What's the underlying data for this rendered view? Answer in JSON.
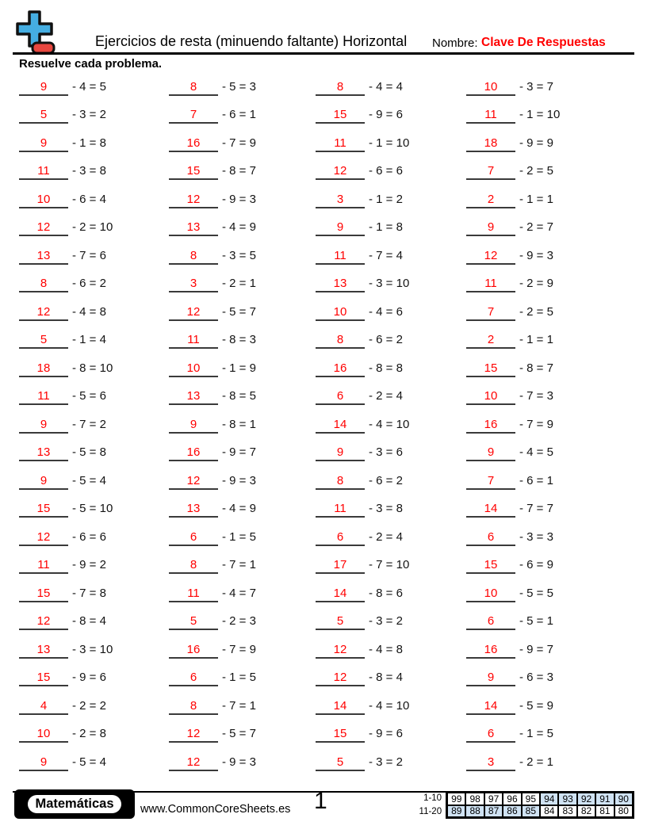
{
  "header": {
    "title": "Ejercicios de resta (minuendo faltante) Horizontal",
    "name_label": "Nombre:",
    "name_value": "Clave De Respuestas",
    "logo_plus_color": "#45aee2",
    "logo_minus_color": "#e8473f"
  },
  "instructions": "Resuelve cada problema.",
  "answer_color": "#ff0000",
  "problems": {
    "format": "[missing_minuend, subtrahend, difference]",
    "columns": [
      [
        [
          9,
          4,
          5
        ],
        [
          5,
          3,
          2
        ],
        [
          9,
          1,
          8
        ],
        [
          11,
          3,
          8
        ],
        [
          10,
          6,
          4
        ],
        [
          12,
          2,
          10
        ],
        [
          13,
          7,
          6
        ],
        [
          8,
          6,
          2
        ],
        [
          12,
          4,
          8
        ],
        [
          5,
          1,
          4
        ],
        [
          18,
          8,
          10
        ],
        [
          11,
          5,
          6
        ],
        [
          9,
          7,
          2
        ],
        [
          13,
          5,
          8
        ],
        [
          9,
          5,
          4
        ],
        [
          15,
          5,
          10
        ],
        [
          12,
          6,
          6
        ],
        [
          11,
          9,
          2
        ],
        [
          15,
          7,
          8
        ],
        [
          12,
          8,
          4
        ],
        [
          13,
          3,
          10
        ],
        [
          15,
          9,
          6
        ],
        [
          4,
          2,
          2
        ],
        [
          10,
          2,
          8
        ],
        [
          9,
          5,
          4
        ]
      ],
      [
        [
          8,
          5,
          3
        ],
        [
          7,
          6,
          1
        ],
        [
          16,
          7,
          9
        ],
        [
          15,
          8,
          7
        ],
        [
          12,
          9,
          3
        ],
        [
          13,
          4,
          9
        ],
        [
          8,
          3,
          5
        ],
        [
          3,
          2,
          1
        ],
        [
          12,
          5,
          7
        ],
        [
          11,
          8,
          3
        ],
        [
          10,
          1,
          9
        ],
        [
          13,
          8,
          5
        ],
        [
          9,
          8,
          1
        ],
        [
          16,
          9,
          7
        ],
        [
          12,
          9,
          3
        ],
        [
          13,
          4,
          9
        ],
        [
          6,
          1,
          5
        ],
        [
          8,
          7,
          1
        ],
        [
          11,
          4,
          7
        ],
        [
          5,
          2,
          3
        ],
        [
          16,
          7,
          9
        ],
        [
          6,
          1,
          5
        ],
        [
          8,
          7,
          1
        ],
        [
          12,
          5,
          7
        ],
        [
          12,
          9,
          3
        ]
      ],
      [
        [
          8,
          4,
          4
        ],
        [
          15,
          9,
          6
        ],
        [
          11,
          1,
          10
        ],
        [
          12,
          6,
          6
        ],
        [
          3,
          1,
          2
        ],
        [
          9,
          1,
          8
        ],
        [
          11,
          7,
          4
        ],
        [
          13,
          3,
          10
        ],
        [
          10,
          4,
          6
        ],
        [
          8,
          6,
          2
        ],
        [
          16,
          8,
          8
        ],
        [
          6,
          2,
          4
        ],
        [
          14,
          4,
          10
        ],
        [
          9,
          3,
          6
        ],
        [
          8,
          6,
          2
        ],
        [
          11,
          3,
          8
        ],
        [
          6,
          2,
          4
        ],
        [
          17,
          7,
          10
        ],
        [
          14,
          8,
          6
        ],
        [
          5,
          3,
          2
        ],
        [
          12,
          4,
          8
        ],
        [
          12,
          8,
          4
        ],
        [
          14,
          4,
          10
        ],
        [
          15,
          9,
          6
        ],
        [
          5,
          3,
          2
        ]
      ],
      [
        [
          10,
          3,
          7
        ],
        [
          11,
          1,
          10
        ],
        [
          18,
          9,
          9
        ],
        [
          7,
          2,
          5
        ],
        [
          2,
          1,
          1
        ],
        [
          9,
          2,
          7
        ],
        [
          12,
          9,
          3
        ],
        [
          11,
          2,
          9
        ],
        [
          7,
          2,
          5
        ],
        [
          2,
          1,
          1
        ],
        [
          15,
          8,
          7
        ],
        [
          10,
          7,
          3
        ],
        [
          16,
          7,
          9
        ],
        [
          9,
          4,
          5
        ],
        [
          7,
          6,
          1
        ],
        [
          14,
          7,
          7
        ],
        [
          6,
          3,
          3
        ],
        [
          15,
          6,
          9
        ],
        [
          10,
          5,
          5
        ],
        [
          6,
          5,
          1
        ],
        [
          16,
          9,
          7
        ],
        [
          9,
          6,
          3
        ],
        [
          14,
          5,
          9
        ],
        [
          6,
          1,
          5
        ],
        [
          3,
          2,
          1
        ]
      ]
    ]
  },
  "footer": {
    "brand": "Matemáticas",
    "website": "www.CommonCoreSheets.es",
    "page_number": "1",
    "score_table": {
      "highlight_color": "#cfe2f3",
      "rows": [
        {
          "label": "1-10",
          "cells": [
            {
              "v": "99",
              "hl": false
            },
            {
              "v": "98",
              "hl": false
            },
            {
              "v": "97",
              "hl": false
            },
            {
              "v": "96",
              "hl": false
            },
            {
              "v": "95",
              "hl": false
            },
            {
              "v": "94",
              "hl": true
            },
            {
              "v": "93",
              "hl": true
            },
            {
              "v": "92",
              "hl": true
            },
            {
              "v": "91",
              "hl": true
            },
            {
              "v": "90",
              "hl": true
            }
          ]
        },
        {
          "label": "11-20",
          "cells": [
            {
              "v": "89",
              "hl": true
            },
            {
              "v": "88",
              "hl": true
            },
            {
              "v": "87",
              "hl": true
            },
            {
              "v": "86",
              "hl": true
            },
            {
              "v": "85",
              "hl": true
            },
            {
              "v": "84",
              "hl": false
            },
            {
              "v": "83",
              "hl": false
            },
            {
              "v": "82",
              "hl": false
            },
            {
              "v": "81",
              "hl": false
            },
            {
              "v": "80",
              "hl": false
            }
          ]
        }
      ]
    }
  }
}
